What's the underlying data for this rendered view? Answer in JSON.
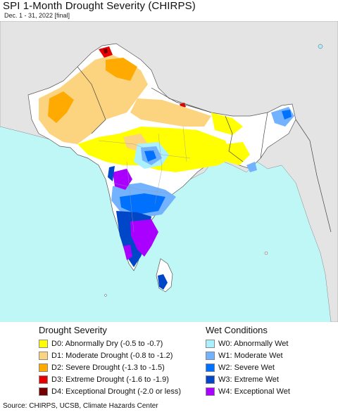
{
  "header": {
    "title": "SPI 1-Month Drought Severity (CHIRPS)",
    "subtitle": "Dec. 1 - 31, 2022 [final]"
  },
  "legend": {
    "drought_title": "Drought Severity",
    "wet_title": "Wet Conditions",
    "drought_items": [
      {
        "label": "D0: Abnormally Dry (-0.5 to -0.7)",
        "color": "#ffff00"
      },
      {
        "label": "D1: Moderate Drought (-0.8 to -1.2)",
        "color": "#fcd37f"
      },
      {
        "label": "D2: Severe Drought (-1.3 to -1.5)",
        "color": "#ffaa00"
      },
      {
        "label": "D3: Extreme Drought (-1.6 to -1.9)",
        "color": "#e60000"
      },
      {
        "label": "D4: Exceptional Drought (-2.0 or less)",
        "color": "#730000"
      }
    ],
    "wet_items": [
      {
        "label": "W0: Abnormally Wet",
        "color": "#aaf0ff"
      },
      {
        "label": "W1: Moderate Wet",
        "color": "#73b2ff"
      },
      {
        "label": "W2: Severe Wet",
        "color": "#0070ff"
      },
      {
        "label": "W3: Extreme Wet",
        "color": "#0046c8"
      },
      {
        "label": "W4: Exceptional Wet",
        "color": "#aa00ff"
      }
    ]
  },
  "source": "Source: CHIRPS, UCSB, Climate Hazards Center",
  "map": {
    "colors": {
      "ocean": "#bff7f7",
      "no_data_land": "#e4e4e4",
      "normal": "#ffffff",
      "border": "#555555"
    }
  }
}
